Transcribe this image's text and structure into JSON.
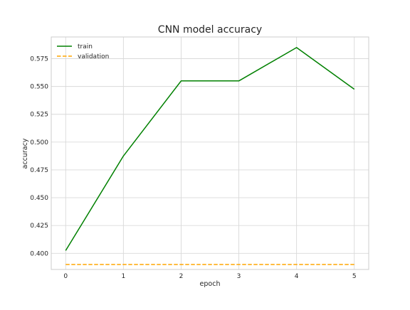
{
  "chart_data": {
    "type": "line",
    "title": "CNN model accuracy",
    "xlabel": "epoch",
    "ylabel": "accuracy",
    "x": [
      0,
      1,
      2,
      3,
      4,
      5
    ],
    "xlim": [
      -0.25,
      5.25
    ],
    "ylim": [
      0.3855,
      0.5945
    ],
    "xticks": [
      0,
      1,
      2,
      3,
      4,
      5
    ],
    "yticks": [
      0.4,
      0.425,
      0.45,
      0.475,
      0.5,
      0.525,
      0.55,
      0.575
    ],
    "xtick_labels": [
      "0",
      "1",
      "2",
      "3",
      "4",
      "5"
    ],
    "ytick_labels": [
      "0.400",
      "0.425",
      "0.450",
      "0.475",
      "0.500",
      "0.525",
      "0.550",
      "0.575"
    ],
    "grid": true,
    "legend_position": "top-left",
    "series": [
      {
        "name": "train",
        "values": [
          0.4025,
          0.4875,
          0.555,
          0.555,
          0.585,
          0.5475
        ],
        "color": "#008000",
        "dash": "solid"
      },
      {
        "name": "validation",
        "values": [
          0.39,
          0.39,
          0.39,
          0.39,
          0.39,
          0.39
        ],
        "color": "#ffa500",
        "dash": "dashed"
      }
    ]
  }
}
